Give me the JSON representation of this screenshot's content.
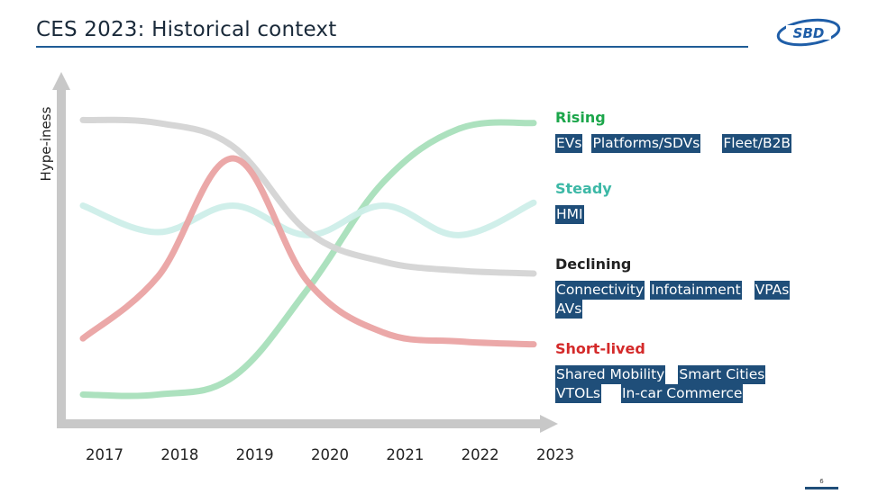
{
  "header": {
    "title": "CES 2023: Historical context",
    "logo_text": "SBD"
  },
  "page_number": "6",
  "colors": {
    "rising": "#1ca64b",
    "steady": "#3cb8a6",
    "declining": "#222222",
    "short_lived": "#d42a2a",
    "tag_bg": "#1f4e79",
    "axis": "#c8c8c8"
  },
  "chart_data": {
    "type": "line",
    "title": "",
    "xlabel": "",
    "ylabel": "Hype-iness",
    "x": [
      "2017",
      "2018",
      "2019",
      "2020",
      "2021",
      "2022",
      "2023"
    ],
    "ylim": [
      0,
      100
    ],
    "grid": false,
    "series": [
      {
        "key": "rising",
        "color": "#a8dfbb",
        "values": [
          2,
          2,
          8,
          38,
          74,
          92,
          94
        ]
      },
      {
        "key": "steady",
        "color": "#cdeee9",
        "values": [
          66,
          57,
          66,
          56,
          66,
          56,
          67
        ]
      },
      {
        "key": "declining",
        "color": "#d4d4d4",
        "values": [
          95,
          94,
          86,
          57,
          47,
          44,
          43
        ]
      },
      {
        "key": "short_lived",
        "color": "#eaa3a3",
        "values": [
          21,
          42,
          82,
          40,
          23,
          20,
          19
        ]
      }
    ]
  },
  "categories": {
    "rising": {
      "label": "Rising",
      "tags": [
        "EVs",
        "Platforms/SDVs",
        "Fleet/B2B"
      ]
    },
    "steady": {
      "label": "Steady",
      "tags": [
        "HMI"
      ]
    },
    "declining": {
      "label": "Declining",
      "tags": [
        "Connectivity",
        "Infotainment",
        "VPAs",
        "AVs"
      ]
    },
    "short_lived": {
      "label": "Short-lived",
      "tags": [
        "Shared Mobility",
        "Smart Cities",
        "VTOLs",
        "In-car Commerce"
      ]
    }
  }
}
